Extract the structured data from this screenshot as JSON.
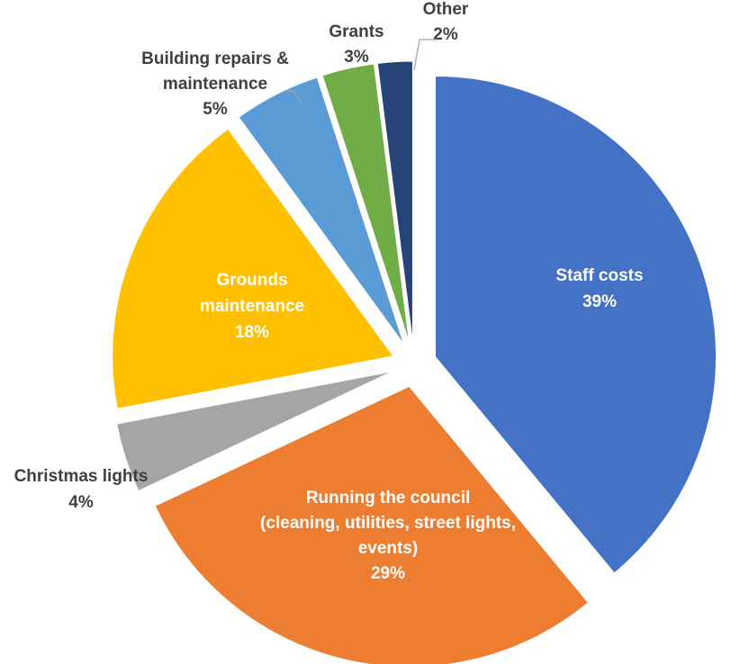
{
  "chart_data": {
    "type": "pie",
    "title": "",
    "unit": "%",
    "slices": [
      {
        "label_lines": [
          "Staff costs"
        ],
        "pct": "39%",
        "value": 39,
        "color": "#4472C4",
        "label_inside": true
      },
      {
        "label_lines": [
          "Running the council",
          "(cleaning, utilities, street lights,",
          "events)"
        ],
        "pct": "29%",
        "value": 29,
        "color": "#ED7D31",
        "label_inside": true
      },
      {
        "label_lines": [
          "Christmas lights"
        ],
        "pct": "4%",
        "value": 4,
        "color": "#A5A5A5",
        "label_inside": false
      },
      {
        "label_lines": [
          "Grounds",
          "maintenance"
        ],
        "pct": "18%",
        "value": 18,
        "color": "#FFC000",
        "label_inside": true
      },
      {
        "label_lines": [
          "Building repairs &",
          "maintenance"
        ],
        "pct": "5%",
        "value": 5,
        "color": "#5B9BD5",
        "label_inside": false
      },
      {
        "label_lines": [
          "Grants"
        ],
        "pct": "3%",
        "value": 3,
        "color": "#70AD47",
        "label_inside": false
      },
      {
        "label_lines": [
          "Other"
        ],
        "pct": "2%",
        "value": 2,
        "color": "#264478",
        "label_inside": false
      }
    ],
    "legend": "none",
    "exploded": true
  }
}
